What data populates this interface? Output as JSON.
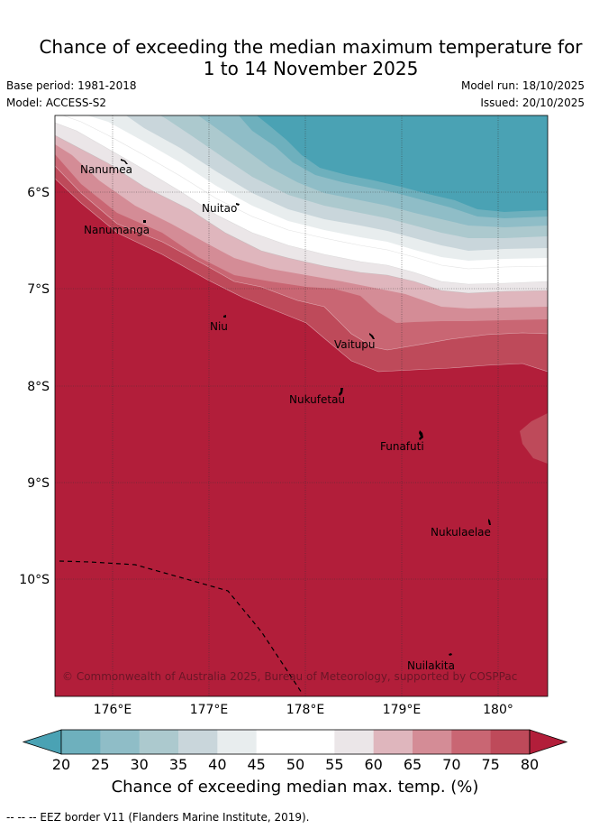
{
  "title": {
    "line1": "Chance of exceeding the median maximum temperature for",
    "line2": "1 to 14 November 2025"
  },
  "meta": {
    "base_period": "Base period: 1981-2018",
    "model": "Model: ACCESS-S2",
    "model_run": "Model run: 18/10/2025",
    "issued": "Issued: 20/10/2025"
  },
  "map": {
    "lon_ticks": [
      "176°E",
      "177°E",
      "178°E",
      "179°E",
      "180°"
    ],
    "lat_ticks": [
      "6°S",
      "7°S",
      "8°S",
      "9°S",
      "10°S"
    ],
    "places": [
      {
        "id": "nanumea",
        "name": "Nanumea"
      },
      {
        "id": "nuitao",
        "name": "Nuitao"
      },
      {
        "id": "nanumanga",
        "name": "Nanumanga"
      },
      {
        "id": "niu",
        "name": "Niu"
      },
      {
        "id": "vaitupu",
        "name": "Vaitupu"
      },
      {
        "id": "nukufetau",
        "name": "Nukufetau"
      },
      {
        "id": "funafuti",
        "name": "Funafuti"
      },
      {
        "id": "nukulaelae",
        "name": "Nukulaelae"
      },
      {
        "id": "nuilakita",
        "name": "Nuilakita"
      }
    ],
    "credit": "© Commonwealth of Australia 2025, Bureau of Meteorology, supported by COSPPac"
  },
  "colorbar": {
    "ticks": [
      "20",
      "25",
      "30",
      "35",
      "40",
      "45",
      "50",
      "55",
      "60",
      "65",
      "70",
      "75",
      "80"
    ],
    "colors": [
      "#4aa2b4",
      "#6eb0bd",
      "#8fbdc7",
      "#acc9ce",
      "#c9d6db",
      "#e8edee",
      "#ffffff",
      "#ffffff",
      "#ebe6e8",
      "#dfb6bd",
      "#d48c96",
      "#c96673",
      "#be4a5a",
      "#b21e3a"
    ],
    "label": "Chance of exceeding median max. temp. (%)"
  },
  "footnote": "--  --  -- EEZ border V11 (Flanders Marine Institute, 2019)."
}
